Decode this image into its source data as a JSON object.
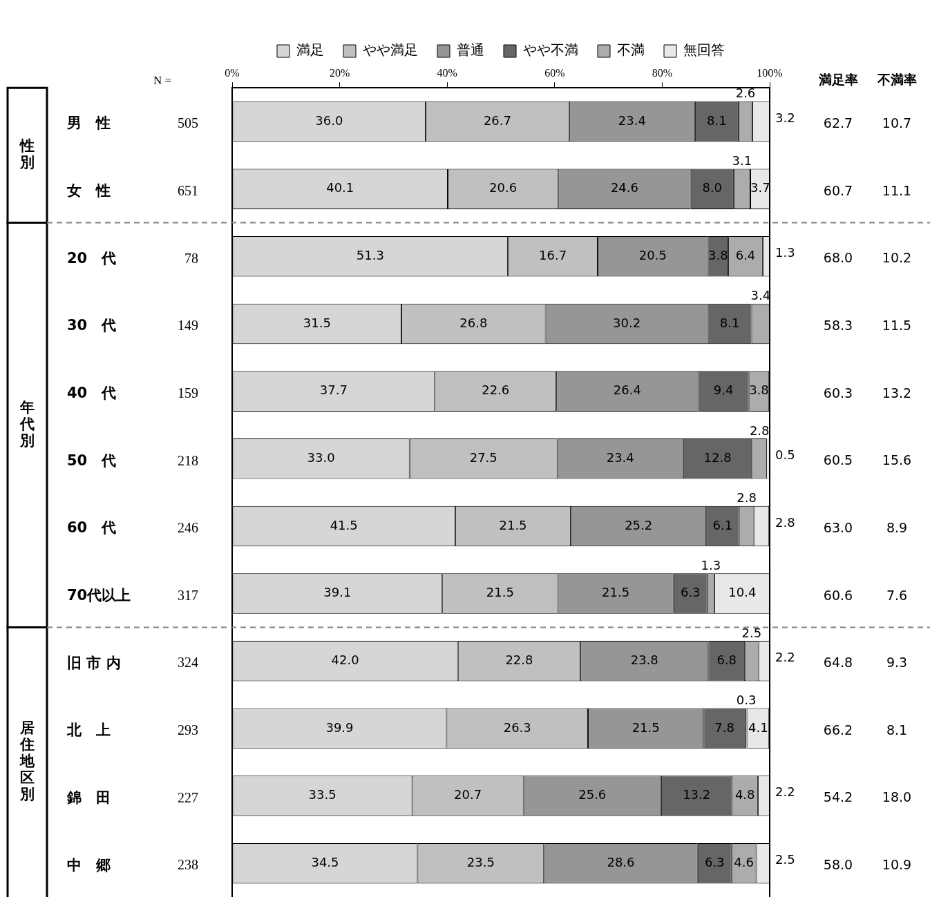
{
  "chart_data": {
    "type": "bar",
    "orientation": "horizontal",
    "stacked": true,
    "legend": "top",
    "grid": false,
    "categories": [
      "男　性",
      "女　性",
      "20　代",
      "30　代",
      "40　代",
      "50　代",
      "60　代",
      "70代以上",
      "旧 市 内",
      "北　上",
      "錦　田",
      "中　郷"
    ],
    "xlim": [
      0,
      100
    ],
    "xticks": [
      {
        "value": 0,
        "label": "0%"
      },
      {
        "value": 20,
        "label": "20%"
      },
      {
        "value": 40,
        "label": "40%"
      },
      {
        "value": 60,
        "label": "60%"
      },
      {
        "value": 80,
        "label": "80%"
      },
      {
        "value": 100,
        "label": "100%"
      }
    ],
    "series": [
      {
        "name": "満足",
        "color": "#d6d6d6",
        "values": [
          36.0,
          40.1,
          51.3,
          31.5,
          37.7,
          33.0,
          41.5,
          39.1,
          42.0,
          39.9,
          33.5,
          34.5
        ],
        "value_labels": [
          "36.0",
          "40.1",
          "51.3",
          "31.5",
          "37.7",
          "33.0",
          "41.5",
          "39.1",
          "42.0",
          "39.9",
          "33.5",
          "34.5"
        ]
      },
      {
        "name": "やや満足",
        "color": "#c0c0c0",
        "values": [
          26.7,
          20.6,
          16.7,
          26.8,
          22.6,
          27.5,
          21.5,
          21.5,
          22.8,
          26.3,
          20.7,
          23.5
        ],
        "value_labels": [
          "26.7",
          "20.6",
          "16.7",
          "26.8",
          "22.6",
          "27.5",
          "21.5",
          "21.5",
          "22.8",
          "26.3",
          "20.7",
          "23.5"
        ]
      },
      {
        "name": "普通",
        "color": "#969696",
        "values": [
          23.4,
          24.6,
          20.5,
          30.2,
          26.4,
          23.4,
          25.2,
          21.5,
          23.8,
          21.5,
          25.6,
          28.6
        ],
        "value_labels": [
          "23.4",
          "24.6",
          "20.5",
          "30.2",
          "26.4",
          "23.4",
          "25.2",
          "21.5",
          "23.8",
          "21.5",
          "25.6",
          "28.6"
        ]
      },
      {
        "name": "やや不満",
        "color": "#666666",
        "values": [
          8.1,
          8.0,
          3.8,
          8.1,
          9.4,
          12.8,
          6.1,
          6.3,
          6.8,
          7.8,
          13.2,
          6.3
        ],
        "value_labels": [
          "8.1",
          "8.0",
          "3.8",
          "8.1",
          "9.4",
          "12.8",
          "6.1",
          "6.3",
          "6.8",
          "7.8",
          "13.2",
          "6.3"
        ]
      },
      {
        "name": "不満",
        "color": "#acacac",
        "values": [
          2.6,
          3.1,
          6.4,
          3.4,
          3.8,
          2.8,
          2.8,
          1.3,
          2.5,
          0.3,
          4.8,
          4.6
        ],
        "value_labels": [
          "2.6",
          "3.1",
          "6.4",
          "3.4",
          "3.8",
          "2.8",
          "2.8",
          "1.3",
          "2.5",
          "0.3",
          "4.8",
          "4.6"
        ]
      },
      {
        "name": "無回答",
        "color": "#e8e8e8",
        "values": [
          3.2,
          3.7,
          1.3,
          null,
          null,
          0.5,
          2.8,
          10.4,
          2.2,
          4.1,
          2.2,
          2.5
        ],
        "value_labels": [
          "3.2",
          "3.7",
          "1.3",
          null,
          null,
          "0.5",
          "2.8",
          "10.4",
          "2.2",
          "4.1",
          "2.2",
          "2.5"
        ]
      }
    ],
    "annotations": [
      "N =",
      "満足率",
      "不満率",
      "505",
      "62.7",
      "10.7",
      "651",
      "60.7",
      "11.1",
      "78",
      "68.0",
      "10.2",
      "149",
      "58.3",
      "11.5",
      "159",
      "60.3",
      "13.2",
      "218",
      "60.5",
      "15.6",
      "246",
      "63.0",
      "8.9",
      "317",
      "60.6",
      "7.6",
      "324",
      "64.8",
      "9.3",
      "293",
      "66.2",
      "8.1",
      "227",
      "54.2",
      "18.0",
      "238",
      "58.0",
      "10.9",
      "性別",
      "年代別",
      "居住地区別"
    ]
  }
}
